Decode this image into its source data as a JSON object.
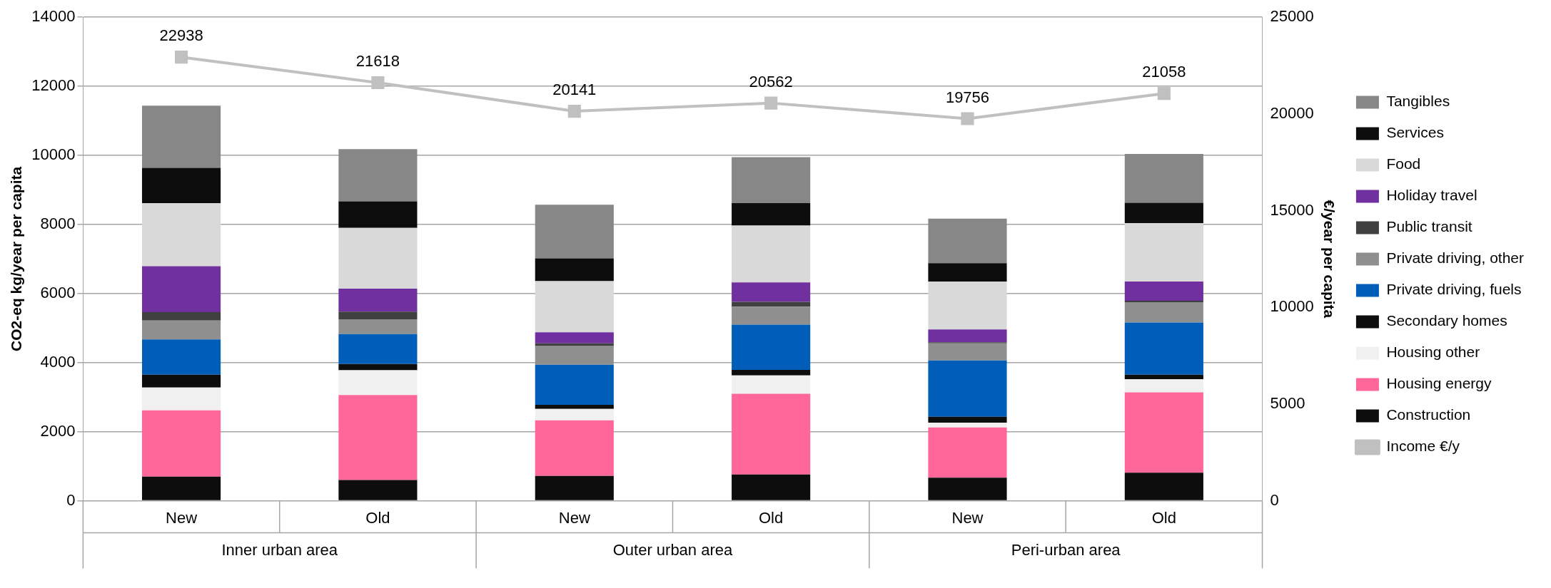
{
  "chart_data": {
    "type": "bar",
    "stacked": true,
    "categories": [
      "New",
      "Old",
      "New",
      "Old",
      "New",
      "Old"
    ],
    "annotations": [
      "Inner urban area",
      "Outer urban area",
      "Peri-urban area"
    ],
    "ylabel": "CO2-eq kg/year per capita",
    "y2label": "€/year per capita",
    "ylim": [
      0,
      14000
    ],
    "yticks": [
      0,
      2000,
      4000,
      6000,
      8000,
      10000,
      12000,
      14000
    ],
    "y2lim": [
      0,
      25000
    ],
    "y2ticks": [
      0,
      5000,
      10000,
      15000,
      20000,
      25000
    ],
    "grid": "y",
    "legend": "right",
    "series": [
      {
        "name": "Construction",
        "color": "#0d0d0d",
        "values": [
          700,
          600,
          720,
          760,
          670,
          810
        ]
      },
      {
        "name": "Housing energy",
        "color": "#ff6699",
        "values": [
          1920,
          2460,
          1610,
          2340,
          1450,
          2330
        ]
      },
      {
        "name": "Housing other",
        "color": "#f0f0f0",
        "values": [
          660,
          720,
          330,
          530,
          140,
          380
        ]
      },
      {
        "name": "Secondary homes",
        "color": "#0d0d0d",
        "values": [
          370,
          180,
          120,
          160,
          170,
          130
        ]
      },
      {
        "name": "Private driving, fuels",
        "color": "#005eb8",
        "values": [
          1020,
          865,
          1160,
          1310,
          1630,
          1510
        ]
      },
      {
        "name": "Private driving, other",
        "color": "#8f8f8f",
        "values": [
          550,
          430,
          550,
          520,
          500,
          590
        ]
      },
      {
        "name": "Public transit",
        "color": "#404040",
        "values": [
          240,
          220,
          70,
          140,
          30,
          40
        ]
      },
      {
        "name": "Holiday travel",
        "color": "#7030a0",
        "values": [
          1330,
          665,
          320,
          560,
          370,
          560
        ]
      },
      {
        "name": "Food",
        "color": "#d9d9d9",
        "values": [
          1830,
          1760,
          1480,
          1650,
          1390,
          1690
        ]
      },
      {
        "name": "Services",
        "color": "#0d0d0d",
        "values": [
          1020,
          770,
          660,
          650,
          530,
          590
        ]
      },
      {
        "name": "Tangibles",
        "color": "#878787",
        "values": [
          1800,
          1510,
          1550,
          1330,
          1290,
          1410
        ]
      },
      {
        "name": "Income €/y",
        "type": "line",
        "axis": "y2",
        "color": "#c0c0c0",
        "marker": "square",
        "values": [
          22938,
          21618,
          20141,
          20562,
          19756,
          21058
        ],
        "value_labels": [
          "22938",
          "21618",
          "20141",
          "20562",
          "19756",
          "21058"
        ]
      }
    ]
  }
}
